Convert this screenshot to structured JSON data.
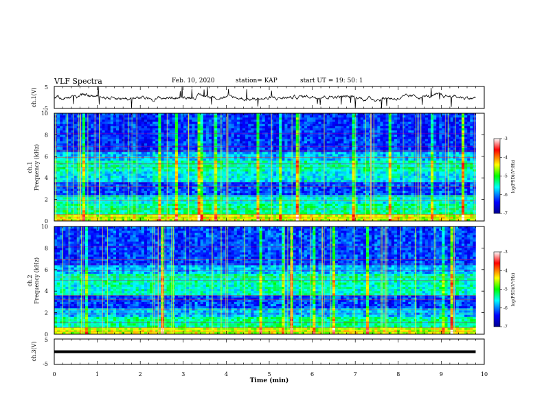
{
  "header": {
    "title": "VLF Spectra",
    "date": "Feb. 10, 2020",
    "station": "station= KAP",
    "start": "start  UT =   19: 50: 1"
  },
  "chart_data": [
    {
      "type": "line",
      "name": "ch1-waveform-panel",
      "ylabel": "ch.1(V)",
      "ylim": [
        -5,
        5
      ],
      "yticks": [
        "5",
        "-5"
      ],
      "xlim": [
        0,
        10
      ],
      "data_xmax": 9.8,
      "description_of_trace": "noisy broadband trace near 0 V with spikes"
    },
    {
      "type": "heatmap",
      "name": "ch1-spectrogram",
      "ylabel_line1": "ch.1",
      "ylabel_line2": "Frequency  (kHz)",
      "ylim": [
        0,
        10
      ],
      "yticks": [
        "0",
        "2",
        "4",
        "6",
        "8",
        "10"
      ],
      "xlim": [
        0,
        10
      ],
      "data_xmax": 9.8,
      "colorbar": {
        "label": "log(PSD)(V²/Hz)",
        "range": [
          -7,
          -3
        ],
        "ticks": [
          "-3",
          "-4",
          "-5",
          "-6",
          "-7"
        ]
      }
    },
    {
      "type": "heatmap",
      "name": "ch2-spectrogram",
      "ylabel_line1": "ch.2",
      "ylabel_line2": "Frequency  (kHz)",
      "ylim": [
        0,
        10
      ],
      "yticks": [
        "0",
        "2",
        "4",
        "6",
        "8",
        "10"
      ],
      "xlim": [
        0,
        10
      ],
      "data_xmax": 9.8,
      "colorbar": {
        "label": "log(PSD)(V²/Hz)",
        "range": [
          -7,
          -3
        ],
        "ticks": [
          "-3",
          "-4",
          "-5",
          "-6",
          "-7"
        ]
      }
    },
    {
      "type": "line",
      "name": "ch3-waveform-panel",
      "ylabel": "ch.3(V)",
      "ylim": [
        -5,
        5
      ],
      "yticks": [
        "5",
        "-5"
      ],
      "xlim": [
        0,
        10
      ],
      "data_xmax": 9.8,
      "constant_value": 0
    }
  ],
  "xaxis": {
    "label": "Time  (min)",
    "ticks": [
      "0",
      "1",
      "2",
      "3",
      "4",
      "5",
      "6",
      "7",
      "8",
      "9",
      "10"
    ]
  },
  "colors": {
    "background": "#ffffff",
    "axis": "#000000",
    "trace": "#000000"
  }
}
